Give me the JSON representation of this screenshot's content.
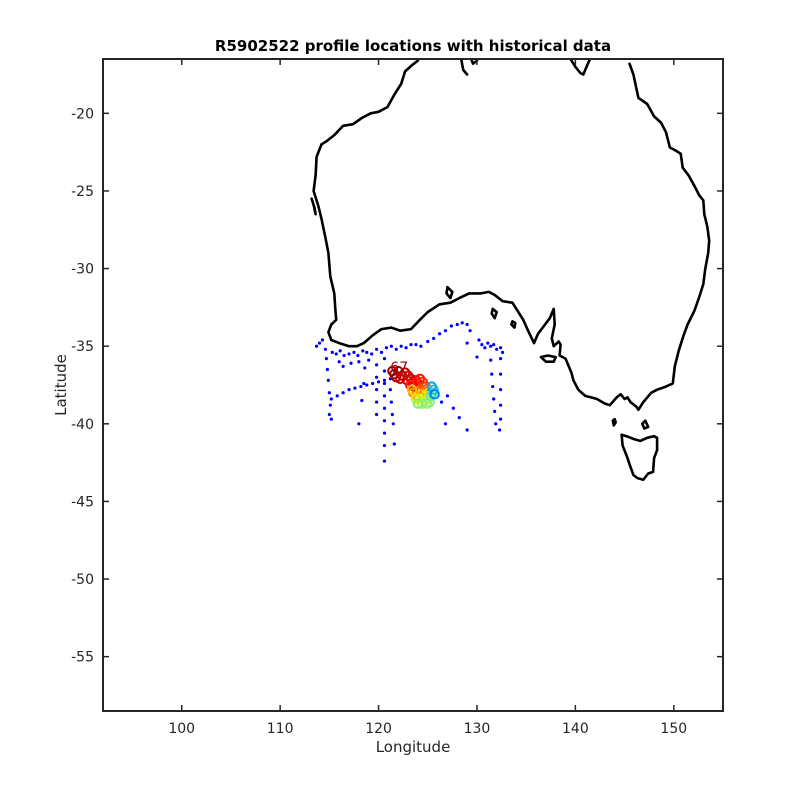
{
  "chart_data": {
    "type": "scatter",
    "title": "R5902522 profile locations with historical data",
    "xlabel": "Longitude",
    "ylabel": "Latitude",
    "xlim": [
      92,
      155
    ],
    "ylim": [
      -58.5,
      -16.5
    ],
    "xticks": [
      100,
      110,
      120,
      130,
      140,
      150
    ],
    "yticks": [
      -20,
      -25,
      -30,
      -35,
      -40,
      -45,
      -50,
      -55
    ],
    "grid": false,
    "colors": {
      "historical": "#0000ff",
      "coastline": "#000000",
      "frame": "#262626"
    },
    "profile_label": "67",
    "historical_points": [
      [
        113.7,
        -35.0
      ],
      [
        114.0,
        -34.8
      ],
      [
        114.3,
        -34.6
      ],
      [
        114.6,
        -35.2
      ],
      [
        114.7,
        -35.8
      ],
      [
        114.8,
        -36.5
      ],
      [
        114.9,
        -37.2
      ],
      [
        115.0,
        -38.0
      ],
      [
        115.1,
        -38.8
      ],
      [
        115.0,
        -39.4
      ],
      [
        115.2,
        -39.7
      ],
      [
        115.3,
        -35.4
      ],
      [
        115.7,
        -35.5
      ],
      [
        116.1,
        -35.3
      ],
      [
        116.5,
        -35.6
      ],
      [
        117.0,
        -35.5
      ],
      [
        117.5,
        -35.4
      ],
      [
        117.9,
        -35.6
      ],
      [
        118.4,
        -35.3
      ],
      [
        118.8,
        -35.4
      ],
      [
        119.3,
        -35.5
      ],
      [
        119.8,
        -35.2
      ],
      [
        120.3,
        -35.4
      ],
      [
        120.8,
        -35.1
      ],
      [
        121.3,
        -35.0
      ],
      [
        121.8,
        -35.2
      ],
      [
        122.3,
        -35.0
      ],
      [
        122.8,
        -35.1
      ],
      [
        123.3,
        -34.9
      ],
      [
        123.8,
        -34.9
      ],
      [
        124.3,
        -35.0
      ],
      [
        125.0,
        -34.7
      ],
      [
        125.6,
        -34.5
      ],
      [
        126.2,
        -34.2
      ],
      [
        126.8,
        -34.0
      ],
      [
        127.4,
        -33.7
      ],
      [
        128.0,
        -33.6
      ],
      [
        128.5,
        -33.5
      ],
      [
        129.0,
        -33.6
      ],
      [
        129.3,
        -34.0
      ],
      [
        130.2,
        -34.6
      ],
      [
        130.5,
        -34.9
      ],
      [
        130.8,
        -35.1
      ],
      [
        131.1,
        -34.8
      ],
      [
        131.4,
        -35.0
      ],
      [
        131.7,
        -34.9
      ],
      [
        132.0,
        -35.2
      ],
      [
        132.4,
        -35.1
      ],
      [
        132.6,
        -35.4
      ],
      [
        120.6,
        -35.8
      ],
      [
        120.6,
        -36.6
      ],
      [
        120.6,
        -37.4
      ],
      [
        120.6,
        -38.2
      ],
      [
        120.6,
        -39.0
      ],
      [
        120.6,
        -39.8
      ],
      [
        120.6,
        -40.6
      ],
      [
        120.6,
        -41.4
      ],
      [
        120.6,
        -42.4
      ],
      [
        119.8,
        -36.2
      ],
      [
        119.8,
        -37.0
      ],
      [
        119.8,
        -37.8
      ],
      [
        119.8,
        -38.6
      ],
      [
        119.8,
        -39.4
      ],
      [
        118.6,
        -36.4
      ],
      [
        118.5,
        -37.4
      ],
      [
        118.3,
        -38.5
      ],
      [
        118.0,
        -40.0
      ],
      [
        121.2,
        -37.8
      ],
      [
        121.3,
        -38.6
      ],
      [
        121.4,
        -39.4
      ],
      [
        121.5,
        -40.0
      ],
      [
        121.6,
        -41.3
      ],
      [
        115.2,
        -38.4
      ],
      [
        115.8,
        -38.2
      ],
      [
        116.4,
        -38.0
      ],
      [
        117.0,
        -37.8
      ],
      [
        117.6,
        -37.7
      ],
      [
        118.2,
        -37.6
      ],
      [
        118.8,
        -37.5
      ],
      [
        119.4,
        -37.4
      ],
      [
        120.0,
        -37.3
      ],
      [
        120.6,
        -37.2
      ],
      [
        121.2,
        -37.1
      ],
      [
        116.0,
        -36.0
      ],
      [
        116.4,
        -36.3
      ],
      [
        117.2,
        -36.1
      ],
      [
        118.0,
        -36.0
      ],
      [
        119.0,
        -35.9
      ],
      [
        127.0,
        -38.2
      ],
      [
        127.6,
        -39.0
      ],
      [
        126.8,
        -40.0
      ],
      [
        126.4,
        -38.6
      ],
      [
        128.2,
        -39.6
      ],
      [
        129.0,
        -40.4
      ],
      [
        131.4,
        -35.9
      ],
      [
        131.5,
        -36.8
      ],
      [
        131.6,
        -37.6
      ],
      [
        131.7,
        -38.4
      ],
      [
        131.8,
        -39.2
      ],
      [
        131.9,
        -40.0
      ],
      [
        132.4,
        -35.8
      ],
      [
        132.4,
        -36.8
      ],
      [
        132.4,
        -37.8
      ],
      [
        132.4,
        -38.8
      ],
      [
        132.4,
        -39.7
      ],
      [
        132.3,
        -40.4
      ],
      [
        130.0,
        -35.7
      ],
      [
        129.0,
        -34.8
      ]
    ],
    "profiles": [
      {
        "lon": 121.6,
        "lat": -36.8,
        "c": "#a00000"
      },
      {
        "lon": 122.0,
        "lat": -36.6,
        "c": "#a80000"
      },
      {
        "lon": 122.4,
        "lat": -36.9,
        "c": "#b00000"
      },
      {
        "lon": 121.8,
        "lat": -37.0,
        "c": "#b80000"
      },
      {
        "lon": 122.7,
        "lat": -36.7,
        "c": "#c00000"
      },
      {
        "lon": 121.4,
        "lat": -36.6,
        "c": "#9a0000"
      },
      {
        "lon": 122.2,
        "lat": -37.1,
        "c": "#c80000"
      },
      {
        "lon": 123.0,
        "lat": -36.9,
        "c": "#d00000"
      },
      {
        "lon": 122.9,
        "lat": -37.2,
        "c": "#d80000"
      },
      {
        "lon": 123.3,
        "lat": -37.1,
        "c": "#e00000"
      },
      {
        "lon": 123.5,
        "lat": -37.4,
        "c": "#e80000"
      },
      {
        "lon": 123.8,
        "lat": -37.2,
        "c": "#f00000"
      },
      {
        "lon": 123.6,
        "lat": -37.6,
        "c": "#f80000"
      },
      {
        "lon": 124.0,
        "lat": -37.4,
        "c": "#ff0000"
      },
      {
        "lon": 124.2,
        "lat": -37.1,
        "c": "#ff1000"
      },
      {
        "lon": 123.2,
        "lat": -37.5,
        "c": "#ff2000"
      },
      {
        "lon": 124.5,
        "lat": -37.3,
        "c": "#ff3000"
      },
      {
        "lon": 124.8,
        "lat": -37.6,
        "c": "#ff4000"
      },
      {
        "lon": 124.3,
        "lat": -37.8,
        "c": "#ff5000"
      },
      {
        "lon": 124.7,
        "lat": -37.9,
        "c": "#ff6000"
      },
      {
        "lon": 123.9,
        "lat": -37.9,
        "c": "#ff7000"
      },
      {
        "lon": 125.0,
        "lat": -37.8,
        "c": "#ff8000"
      },
      {
        "lon": 123.5,
        "lat": -38.0,
        "c": "#ff9000"
      },
      {
        "lon": 123.9,
        "lat": -38.2,
        "c": "#ffa000"
      },
      {
        "lon": 124.4,
        "lat": -38.1,
        "c": "#ffb000"
      },
      {
        "lon": 123.4,
        "lat": -37.8,
        "c": "#ffc000"
      },
      {
        "lon": 124.8,
        "lat": -38.2,
        "c": "#ffd000"
      },
      {
        "lon": 125.1,
        "lat": -38.0,
        "c": "#ffe000"
      },
      {
        "lon": 124.2,
        "lat": -38.4,
        "c": "#f0f000"
      },
      {
        "lon": 124.6,
        "lat": -38.5,
        "c": "#e0f010"
      },
      {
        "lon": 123.8,
        "lat": -38.4,
        "c": "#d0f020"
      },
      {
        "lon": 125.0,
        "lat": -38.4,
        "c": "#c0f030"
      },
      {
        "lon": 124.4,
        "lat": -38.7,
        "c": "#a0f050"
      },
      {
        "lon": 124.9,
        "lat": -38.7,
        "c": "#90f060"
      },
      {
        "lon": 124.0,
        "lat": -38.7,
        "c": "#80f070"
      },
      {
        "lon": 125.2,
        "lat": -38.6,
        "c": "#80f080"
      },
      {
        "lon": 125.3,
        "lat": -38.2,
        "c": "#60f0a0"
      },
      {
        "lon": 125.5,
        "lat": -38.0,
        "c": "#40e0c0"
      },
      {
        "lon": 125.6,
        "lat": -37.8,
        "c": "#20c0e0"
      },
      {
        "lon": 125.4,
        "lat": -37.6,
        "c": "#10a0f0"
      },
      {
        "lon": 125.7,
        "lat": -38.1,
        "c": "#0080ff"
      }
    ],
    "coastline": [
      [
        [
          114.2,
          -22.0
        ],
        [
          113.7,
          -22.8
        ],
        [
          113.6,
          -24.0
        ],
        [
          113.4,
          -25.0
        ],
        [
          113.9,
          -26.0
        ],
        [
          114.2,
          -26.8
        ],
        [
          114.6,
          -28.0
        ],
        [
          114.9,
          -29.0
        ],
        [
          115.1,
          -30.5
        ],
        [
          115.5,
          -31.6
        ],
        [
          115.6,
          -32.6
        ],
        [
          115.7,
          -33.3
        ],
        [
          115.2,
          -33.6
        ],
        [
          114.9,
          -34.1
        ],
        [
          115.2,
          -34.6
        ],
        [
          116.0,
          -34.8
        ],
        [
          117.0,
          -35.0
        ],
        [
          117.8,
          -35.0
        ],
        [
          118.5,
          -34.8
        ],
        [
          119.4,
          -34.3
        ],
        [
          120.3,
          -33.9
        ],
        [
          121.3,
          -33.8
        ],
        [
          122.2,
          -34.0
        ],
        [
          123.3,
          -33.9
        ],
        [
          124.2,
          -33.3
        ],
        [
          125.0,
          -32.8
        ],
        [
          126.2,
          -32.3
        ],
        [
          127.3,
          -32.2
        ],
        [
          128.2,
          -31.9
        ],
        [
          129.2,
          -31.6
        ],
        [
          130.4,
          -31.6
        ],
        [
          131.2,
          -31.5
        ],
        [
          131.8,
          -31.7
        ],
        [
          132.6,
          -32.1
        ],
        [
          133.6,
          -32.2
        ],
        [
          134.2,
          -32.8
        ],
        [
          134.7,
          -33.3
        ],
        [
          135.2,
          -34.0
        ],
        [
          135.8,
          -34.8
        ],
        [
          136.2,
          -34.2
        ],
        [
          136.8,
          -33.7
        ],
        [
          137.4,
          -33.2
        ],
        [
          137.8,
          -32.6
        ],
        [
          137.9,
          -33.6
        ],
        [
          137.6,
          -34.5
        ],
        [
          137.8,
          -35.0
        ],
        [
          138.3,
          -34.7
        ],
        [
          138.5,
          -34.9
        ],
        [
          138.4,
          -35.6
        ],
        [
          139.0,
          -35.8
        ],
        [
          139.6,
          -36.7
        ],
        [
          139.8,
          -37.2
        ],
        [
          140.3,
          -37.8
        ],
        [
          141.0,
          -38.2
        ],
        [
          141.6,
          -38.3
        ],
        [
          142.2,
          -38.4
        ],
        [
          143.0,
          -38.7
        ],
        [
          143.5,
          -38.8
        ],
        [
          144.2,
          -38.3
        ],
        [
          144.6,
          -38.1
        ],
        [
          145.0,
          -38.4
        ],
        [
          145.3,
          -38.3
        ],
        [
          145.6,
          -38.6
        ],
        [
          146.2,
          -38.9
        ],
        [
          146.4,
          -39.1
        ],
        [
          146.9,
          -38.6
        ],
        [
          147.7,
          -38.0
        ],
        [
          148.3,
          -37.8
        ],
        [
          149.2,
          -37.6
        ],
        [
          149.9,
          -37.4
        ],
        [
          150.1,
          -36.3
        ],
        [
          150.5,
          -35.3
        ],
        [
          151.0,
          -34.3
        ],
        [
          151.4,
          -33.6
        ],
        [
          152.1,
          -32.7
        ],
        [
          152.6,
          -31.8
        ],
        [
          153.0,
          -31.0
        ],
        [
          153.2,
          -30.0
        ],
        [
          153.5,
          -29.0
        ],
        [
          153.6,
          -28.2
        ],
        [
          153.4,
          -27.3
        ],
        [
          153.1,
          -26.5
        ],
        [
          153.0,
          -25.6
        ],
        [
          152.6,
          -25.3
        ],
        [
          152.2,
          -24.8
        ],
        [
          151.5,
          -24.0
        ],
        [
          150.9,
          -23.5
        ],
        [
          150.7,
          -22.6
        ],
        [
          150.2,
          -22.4
        ],
        [
          149.6,
          -22.2
        ],
        [
          149.2,
          -21.2
        ],
        [
          148.7,
          -20.6
        ],
        [
          148.0,
          -20.2
        ],
        [
          147.3,
          -19.4
        ],
        [
          146.4,
          -19.0
        ],
        [
          146.2,
          -18.4
        ],
        [
          145.9,
          -17.5
        ],
        [
          145.5,
          -16.8
        ]
      ],
      [
        [
          114.2,
          -22.0
        ],
        [
          114.7,
          -21.8
        ],
        [
          115.5,
          -21.4
        ],
        [
          116.4,
          -20.8
        ],
        [
          117.4,
          -20.7
        ],
        [
          118.3,
          -20.3
        ],
        [
          119.2,
          -20.0
        ],
        [
          120.0,
          -19.9
        ],
        [
          120.9,
          -19.6
        ],
        [
          121.6,
          -18.8
        ],
        [
          122.3,
          -18.1
        ],
        [
          122.7,
          -17.3
        ],
        [
          123.4,
          -16.9
        ],
        [
          124.0,
          -16.6
        ]
      ],
      [
        [
          128.4,
          -16.5
        ],
        [
          128.6,
          -17.2
        ],
        [
          129.0,
          -17.5
        ]
      ],
      [
        [
          129.4,
          -16.5
        ],
        [
          129.6,
          -16.8
        ],
        [
          130.0,
          -16.6
        ]
      ],
      [
        [
          139.5,
          -16.5
        ],
        [
          140.0,
          -17.0
        ],
        [
          140.5,
          -17.4
        ],
        [
          140.8,
          -17.5
        ],
        [
          141.2,
          -16.9
        ],
        [
          141.5,
          -16.5
        ]
      ],
      [
        [
          145.2,
          -40.8
        ],
        [
          144.7,
          -40.7
        ],
        [
          144.8,
          -41.4
        ],
        [
          145.3,
          -42.2
        ],
        [
          145.5,
          -42.6
        ],
        [
          145.9,
          -43.3
        ],
        [
          146.3,
          -43.5
        ],
        [
          146.9,
          -43.6
        ],
        [
          147.4,
          -43.2
        ],
        [
          147.9,
          -43.1
        ],
        [
          148.0,
          -42.2
        ],
        [
          148.3,
          -41.7
        ],
        [
          148.3,
          -40.9
        ],
        [
          148.0,
          -40.8
        ],
        [
          147.3,
          -40.9
        ],
        [
          146.6,
          -41.1
        ],
        [
          146.0,
          -41.0
        ],
        [
          145.2,
          -40.8
        ]
      ],
      [
        [
          146.8,
          -40.0
        ],
        [
          147.1,
          -39.8
        ],
        [
          147.4,
          -40.2
        ],
        [
          147.0,
          -40.3
        ],
        [
          146.8,
          -40.0
        ]
      ],
      [
        [
          144.0,
          -39.7
        ],
        [
          144.1,
          -39.9
        ],
        [
          143.9,
          -40.1
        ],
        [
          143.8,
          -39.8
        ],
        [
          144.0,
          -39.7
        ]
      ],
      [
        [
          136.5,
          -35.7
        ],
        [
          137.2,
          -35.6
        ],
        [
          138.0,
          -35.7
        ],
        [
          137.8,
          -36.0
        ],
        [
          137.0,
          -36.0
        ],
        [
          136.5,
          -35.7
        ]
      ],
      [
        [
          113.2,
          -25.5
        ],
        [
          113.4,
          -25.9
        ],
        [
          113.6,
          -26.5
        ],
        [
          113.5,
          -26.1
        ],
        [
          113.2,
          -25.5
        ]
      ],
      [
        [
          127.0,
          -31.2
        ],
        [
          127.5,
          -31.5
        ],
        [
          127.3,
          -31.9
        ],
        [
          126.9,
          -31.6
        ],
        [
          127.0,
          -31.2
        ]
      ],
      [
        [
          131.6,
          -32.6
        ],
        [
          132.0,
          -32.8
        ],
        [
          131.8,
          -33.2
        ],
        [
          131.5,
          -32.9
        ],
        [
          131.6,
          -32.6
        ]
      ],
      [
        [
          133.6,
          -33.4
        ],
        [
          133.9,
          -33.5
        ],
        [
          133.8,
          -33.8
        ],
        [
          133.5,
          -33.6
        ],
        [
          133.6,
          -33.4
        ]
      ]
    ]
  }
}
